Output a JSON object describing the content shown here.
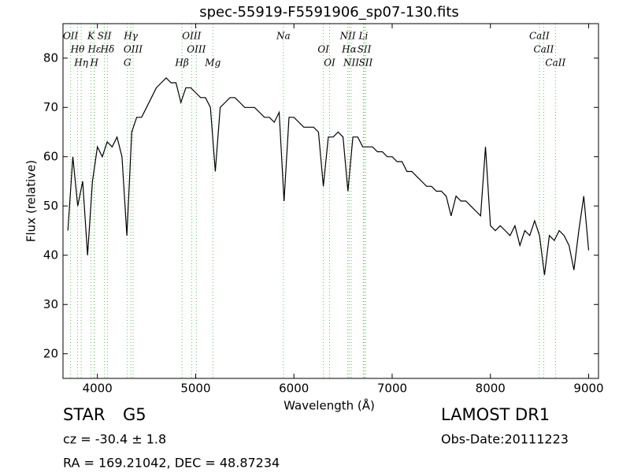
{
  "chart_data": {
    "type": "line",
    "title": "spec-55919-F5591906_sp07-130.fits",
    "x_label": "Wavelength (Å)",
    "y_label": "Flux (relative)",
    "x": [
      3700,
      3750,
      3800,
      3850,
      3900,
      3950,
      4000,
      4050,
      4100,
      4150,
      4200,
      4250,
      4300,
      4350,
      4400,
      4450,
      4500,
      4550,
      4600,
      4650,
      4700,
      4750,
      4800,
      4850,
      4900,
      4950,
      5000,
      5050,
      5100,
      5150,
      5200,
      5250,
      5300,
      5350,
      5400,
      5450,
      5500,
      5550,
      5600,
      5650,
      5700,
      5750,
      5800,
      5850,
      5900,
      5950,
      6000,
      6050,
      6100,
      6150,
      6200,
      6250,
      6300,
      6350,
      6400,
      6450,
      6500,
      6550,
      6600,
      6650,
      6700,
      6750,
      6800,
      6850,
      6900,
      6950,
      7000,
      7050,
      7100,
      7150,
      7200,
      7250,
      7300,
      7350,
      7400,
      7450,
      7500,
      7550,
      7600,
      7650,
      7700,
      7750,
      7800,
      7850,
      7900,
      7950,
      8000,
      8050,
      8100,
      8150,
      8200,
      8250,
      8300,
      8350,
      8400,
      8450,
      8500,
      8550,
      8600,
      8650,
      8700,
      8750,
      8800,
      8850,
      8900,
      8950,
      9000
    ],
    "values": [
      45,
      60,
      50,
      55,
      40,
      55,
      62,
      60,
      63,
      62,
      64,
      60,
      44,
      65,
      68,
      68,
      70,
      72,
      74,
      75,
      76,
      75,
      75,
      71,
      74,
      74,
      73,
      72,
      72,
      70,
      57,
      70,
      71,
      72,
      72,
      71,
      70,
      70,
      70,
      69,
      68,
      68,
      67,
      69,
      51,
      68,
      68,
      67,
      66,
      66,
      66,
      65,
      54,
      64,
      64,
      65,
      64,
      53,
      64,
      64,
      62,
      62,
      62,
      61,
      61,
      60,
      60,
      59,
      59,
      57,
      57,
      56,
      55,
      54,
      54,
      53,
      53,
      52,
      48,
      52,
      51,
      51,
      50,
      49,
      48,
      62,
      46,
      45,
      46,
      45,
      44,
      46,
      42,
      45,
      44,
      47,
      44,
      36,
      44,
      43,
      45,
      44,
      42,
      37,
      45,
      52,
      41
    ],
    "color": "#000000",
    "xlim": [
      3650,
      9100
    ],
    "ylim": [
      15,
      87
    ],
    "xticks": [
      4000,
      5000,
      6000,
      7000,
      8000,
      9000
    ],
    "yticks": [
      20,
      30,
      40,
      50,
      60,
      70,
      80
    ],
    "line_color": "#66bb66",
    "lines": [
      {
        "label": "OII",
        "x": 3727
      },
      {
        "label": "Hθ",
        "x": 3798
      },
      {
        "label": "Hη",
        "x": 3835
      },
      {
        "label": "K",
        "x": 3934
      },
      {
        "label": "Hε",
        "x": 3970
      },
      {
        "label": "H",
        "x": 3968
      },
      {
        "label": "SII",
        "x": 4072
      },
      {
        "label": "Hδ",
        "x": 4102
      },
      {
        "label": "G",
        "x": 4305
      },
      {
        "label": "Hγ",
        "x": 4340
      },
      {
        "label": "OIII",
        "x": 4363
      },
      {
        "label": "Hβ",
        "x": 4861
      },
      {
        "label": "OIII",
        "x": 4959
      },
      {
        "label": "OIII",
        "x": 5007
      },
      {
        "label": "Mg",
        "x": 5175
      },
      {
        "label": "Na",
        "x": 5893
      },
      {
        "label": "OI",
        "x": 6300
      },
      {
        "label": "OI",
        "x": 6363
      },
      {
        "label": "NII",
        "x": 6548
      },
      {
        "label": "Hα",
        "x": 6563
      },
      {
        "label": "NII",
        "x": 6583
      },
      {
        "label": "Li",
        "x": 6707
      },
      {
        "label": "SII",
        "x": 6716
      },
      {
        "label": "SII",
        "x": 6731
      },
      {
        "label": "CaII",
        "x": 8498
      },
      {
        "label": "CaII",
        "x": 8542
      },
      {
        "label": "CaII",
        "x": 8662
      }
    ],
    "info": {
      "class": "STAR",
      "subclass": "G5",
      "survey": "LAMOST DR1",
      "cz": "cz = -30.4 ± 1.8",
      "date": "Obs-Date:20111223",
      "coords": "RA = 169.21042, DEC = 48.87234"
    }
  }
}
